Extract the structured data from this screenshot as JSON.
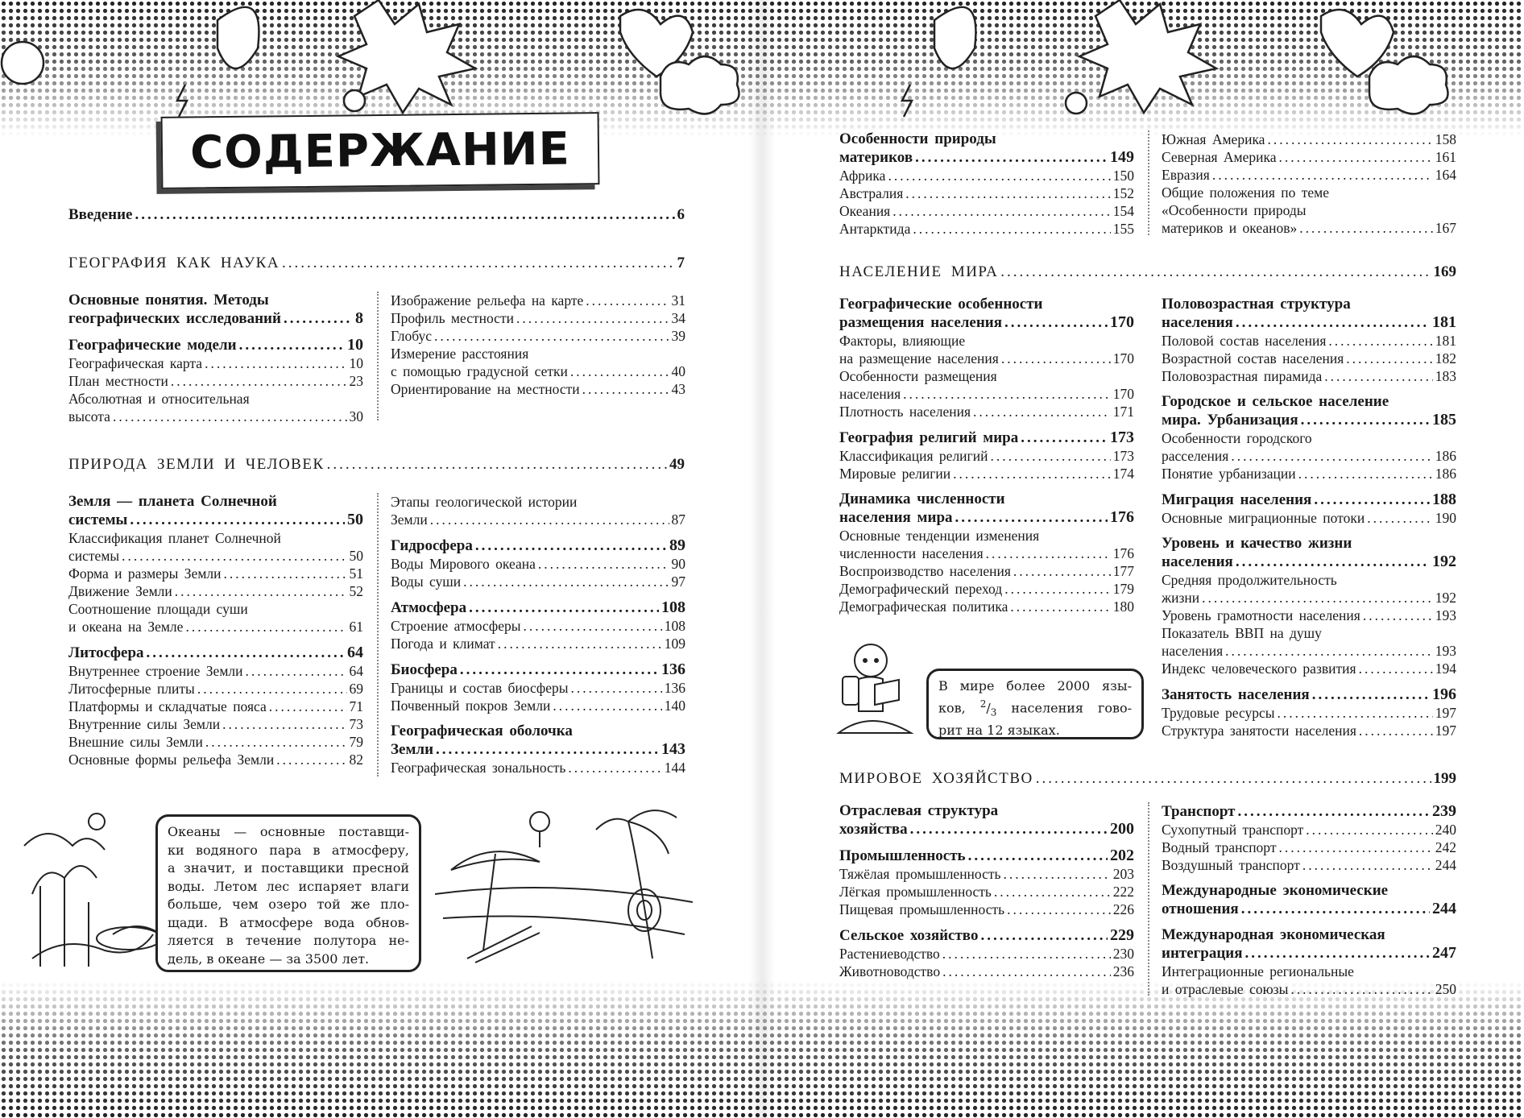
{
  "title": "СОДЕРЖАНИЕ",
  "left_page": {
    "intro": {
      "title": "Введение",
      "page": "6"
    },
    "parts": [
      {
        "heading": "ГЕОГРАФИЯ КАК НАУКА",
        "page": "7",
        "columns": [
          [
            {
              "bold": true,
              "lines": [
                "Основные понятия. Методы",
                "географических исследований"
              ],
              "page": "8"
            },
            {
              "bold": true,
              "lines": [
                "Географические модели"
              ],
              "page": "10"
            },
            {
              "lines": [
                "Географическая карта"
              ],
              "page": "10"
            },
            {
              "lines": [
                "План местности"
              ],
              "page": "23"
            },
            {
              "lines": [
                "Абсолютная и относительная",
                "высота"
              ],
              "page": "30"
            }
          ],
          [
            {
              "lines": [
                "Изображение рельефа на карте"
              ],
              "page": "31"
            },
            {
              "lines": [
                "Профиль местности"
              ],
              "page": "34"
            },
            {
              "lines": [
                "Глобус"
              ],
              "page": "39"
            },
            {
              "lines": [
                "Измерение расстояния",
                "с помощью градусной сетки"
              ],
              "page": "40"
            },
            {
              "lines": [
                "Ориентирование на местности"
              ],
              "page": "43"
            }
          ]
        ]
      },
      {
        "heading": "ПРИРОДА ЗЕМЛИ И ЧЕЛОВЕК",
        "page": "49",
        "columns": [
          [
            {
              "bold": true,
              "lines": [
                "Земля — планета Солнечной",
                "системы"
              ],
              "page": "50"
            },
            {
              "lines": [
                "Классификация планет Солнечной",
                "системы"
              ],
              "page": "50"
            },
            {
              "lines": [
                "Форма и размеры Земли"
              ],
              "page": "51"
            },
            {
              "lines": [
                "Движение Земли"
              ],
              "page": "52"
            },
            {
              "lines": [
                "Соотношение площади суши",
                "и океана на Земле"
              ],
              "page": "61"
            },
            {
              "bold": true,
              "lines": [
                "Литосфера"
              ],
              "page": "64"
            },
            {
              "lines": [
                "Внутреннее строение Земли"
              ],
              "page": "64"
            },
            {
              "lines": [
                "Литосферные плиты"
              ],
              "page": "69"
            },
            {
              "lines": [
                "Платформы и складчатые пояса"
              ],
              "page": "71"
            },
            {
              "lines": [
                "Внутренние силы Земли"
              ],
              "page": "73"
            },
            {
              "lines": [
                "Внешние силы Земли"
              ],
              "page": "79"
            },
            {
              "lines": [
                "Основные формы рельефа Земли"
              ],
              "page": "82"
            }
          ],
          [
            {
              "lines": [
                "Этапы геологической истории",
                "Земли"
              ],
              "page": "87"
            },
            {
              "bold": true,
              "lines": [
                "Гидросфера"
              ],
              "page": "89"
            },
            {
              "lines": [
                "Воды Мирового океана"
              ],
              "page": "90"
            },
            {
              "lines": [
                "Воды суши"
              ],
              "page": "97"
            },
            {
              "bold": true,
              "lines": [
                "Атмосфера"
              ],
              "page": "108"
            },
            {
              "lines": [
                "Строение атмосферы"
              ],
              "page": "108"
            },
            {
              "lines": [
                "Погода и климат"
              ],
              "page": "109"
            },
            {
              "bold": true,
              "lines": [
                "Биосфера"
              ],
              "page": "136"
            },
            {
              "lines": [
                "Границы и состав биосферы"
              ],
              "page": "136"
            },
            {
              "lines": [
                "Почвенный покров Земли"
              ],
              "page": "140"
            },
            {
              "bold": true,
              "lines": [
                "Географическая оболочка",
                "Земли"
              ],
              "page": "143"
            },
            {
              "lines": [
                "Географическая зональность"
              ],
              "page": "144"
            }
          ]
        ]
      }
    ],
    "fact_bubble": [
      "Океаны — основные поставщи-",
      "ки водяного пара в атмосферу,",
      "а значит, и поставщики пресной",
      "воды. Летом лес испаряет влаги",
      "больше, чем озеро той же пло-",
      "щади. В атмосфере вода обнов-",
      "ляется в течение полутора не-",
      "дель, в океане — за 3500 лет."
    ]
  },
  "right_page": {
    "continued": {
      "columns": [
        [
          {
            "bold": true,
            "lines": [
              "Особенности природы",
              "материков"
            ],
            "page": "149"
          },
          {
            "lines": [
              "Африка"
            ],
            "page": "150"
          },
          {
            "lines": [
              "Австралия"
            ],
            "page": "152"
          },
          {
            "lines": [
              "Океания"
            ],
            "page": "154"
          },
          {
            "lines": [
              "Антарктида"
            ],
            "page": "155"
          }
        ],
        [
          {
            "lines": [
              "Южная Америка"
            ],
            "page": "158"
          },
          {
            "lines": [
              "Северная Америка"
            ],
            "page": "161"
          },
          {
            "lines": [
              "Евразия"
            ],
            "page": "164"
          },
          {
            "lines": [
              "Общие положения по теме",
              "«Особенности природы",
              "материков и океанов»"
            ],
            "page": "167"
          }
        ]
      ]
    },
    "parts": [
      {
        "heading": "НАСЕЛЕНИЕ МИРА",
        "page": "169",
        "columns": [
          [
            {
              "bold": true,
              "lines": [
                "Географические особенности",
                "размещения населения"
              ],
              "page": "170"
            },
            {
              "lines": [
                "Факторы, влияющие",
                "на размещение населения"
              ],
              "page": "170"
            },
            {
              "lines": [
                "Особенности размещения",
                "населения"
              ],
              "page": "170"
            },
            {
              "lines": [
                "Плотность населения"
              ],
              "page": "171"
            },
            {
              "bold": true,
              "lines": [
                "География религий мира"
              ],
              "page": "173"
            },
            {
              "lines": [
                "Классификация религий"
              ],
              "page": "173"
            },
            {
              "lines": [
                "Мировые религии"
              ],
              "page": "174"
            },
            {
              "bold": true,
              "lines": [
                "Динамика численности",
                "населения мира"
              ],
              "page": "176"
            },
            {
              "lines": [
                "Основные тенденции изменения",
                "численности населения"
              ],
              "page": "176"
            },
            {
              "lines": [
                "Воспроизводство населения"
              ],
              "page": "177"
            },
            {
              "lines": [
                "Демографический переход"
              ],
              "page": "179"
            },
            {
              "lines": [
                "Демографическая политика"
              ],
              "page": "180"
            }
          ],
          [
            {
              "bold": true,
              "lines": [
                "Половозрастная структура",
                "населения"
              ],
              "page": "181"
            },
            {
              "lines": [
                "Половой состав населения"
              ],
              "page": "181"
            },
            {
              "lines": [
                "Возрастной состав населения"
              ],
              "page": "182"
            },
            {
              "lines": [
                "Половозрастная пирамида"
              ],
              "page": "183"
            },
            {
              "bold": true,
              "lines": [
                "Городское и сельское население",
                "мира. Урбанизация"
              ],
              "page": "185"
            },
            {
              "lines": [
                "Особенности городского",
                "расселения"
              ],
              "page": "186"
            },
            {
              "lines": [
                "Понятие урбанизации"
              ],
              "page": "186"
            },
            {
              "bold": true,
              "lines": [
                "Миграция населения"
              ],
              "page": "188"
            },
            {
              "lines": [
                "Основные миграционные потоки"
              ],
              "page": "190"
            },
            {
              "bold": true,
              "lines": [
                "Уровень и качество жизни",
                "населения"
              ],
              "page": "192"
            },
            {
              "lines": [
                "Средняя продолжительность",
                "жизни"
              ],
              "page": "192"
            },
            {
              "lines": [
                "Уровень грамотности населения"
              ],
              "page": "193"
            },
            {
              "lines": [
                "Показатель ВВП на душу",
                "населения"
              ],
              "page": "193"
            },
            {
              "lines": [
                "Индекс человеческого развития"
              ],
              "page": "194"
            },
            {
              "bold": true,
              "lines": [
                "Занятость населения"
              ],
              "page": "196"
            },
            {
              "lines": [
                "Трудовые ресурсы"
              ],
              "page": "197"
            },
            {
              "lines": [
                "Структура занятости населения"
              ],
              "page": "197"
            }
          ]
        ]
      },
      {
        "heading": "МИРОВОЕ ХОЗЯЙСТВО",
        "page": "199",
        "columns": [
          [
            {
              "bold": true,
              "lines": [
                "Отраслевая структура",
                "хозяйства"
              ],
              "page": "200"
            },
            {
              "bold": true,
              "lines": [
                "Промышленность"
              ],
              "page": "202"
            },
            {
              "lines": [
                "Тяжёлая промышленность"
              ],
              "page": "203"
            },
            {
              "lines": [
                "Лёгкая промышленность"
              ],
              "page": "222"
            },
            {
              "lines": [
                "Пищевая промышленность"
              ],
              "page": "226"
            },
            {
              "bold": true,
              "lines": [
                "Сельское хозяйство"
              ],
              "page": "229"
            },
            {
              "lines": [
                "Растениеводство"
              ],
              "page": "230"
            },
            {
              "lines": [
                "Животноводство"
              ],
              "page": "236"
            }
          ],
          [
            {
              "bold": true,
              "lines": [
                "Транспорт"
              ],
              "page": "239"
            },
            {
              "lines": [
                "Сухопутный транспорт"
              ],
              "page": "240"
            },
            {
              "lines": [
                "Водный транспорт"
              ],
              "page": "242"
            },
            {
              "lines": [
                "Воздушный транспорт"
              ],
              "page": "244"
            },
            {
              "bold": true,
              "lines": [
                "Международные экономические",
                "отношения"
              ],
              "page": "244"
            },
            {
              "bold": true,
              "lines": [
                "Международная экономическая",
                "интеграция"
              ],
              "page": "247"
            },
            {
              "lines": [
                "Интеграционные региональные",
                "и отраслевые союзы"
              ],
              "page": "250"
            }
          ]
        ]
      }
    ],
    "fact_bubble": {
      "line1": "В мире более 2000 язы-",
      "line2_start": "ков,",
      "fraction_num": "2",
      "fraction_den": "3",
      "line2_end": "населения гово-",
      "line3": "рит на 12 языках."
    }
  }
}
